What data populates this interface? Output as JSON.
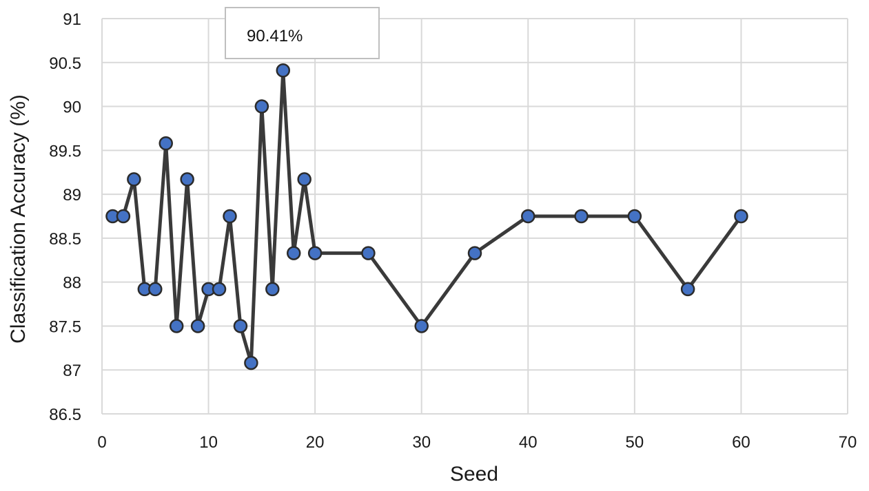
{
  "chart_data": {
    "type": "line",
    "title": "",
    "xlabel": "Seed",
    "ylabel": "Classification Accuracy (%)",
    "xlim": [
      0,
      70
    ],
    "ylim": [
      86.5,
      91
    ],
    "x_ticks": [
      "0",
      "10",
      "20",
      "30",
      "40",
      "50",
      "60",
      "70"
    ],
    "y_ticks": [
      "86.5",
      "87",
      "87.5",
      "88",
      "88.5",
      "89",
      "89.5",
      "90",
      "90.5",
      "91"
    ],
    "grid": true,
    "legend": "none",
    "series": [
      {
        "name": "Accuracy",
        "x": [
          1,
          2,
          3,
          4,
          5,
          6,
          7,
          8,
          9,
          10,
          11,
          12,
          13,
          14,
          15,
          16,
          17,
          18,
          19,
          20,
          25,
          30,
          35,
          40,
          45,
          50,
          55,
          60
        ],
        "values": [
          88.75,
          88.75,
          89.17,
          87.92,
          87.92,
          89.58,
          87.5,
          89.17,
          87.5,
          87.92,
          87.92,
          88.75,
          87.5,
          87.08,
          90.0,
          87.92,
          90.41,
          88.33,
          89.17,
          88.33,
          88.33,
          87.5,
          88.33,
          88.75,
          88.75,
          88.75,
          87.92,
          88.75
        ]
      }
    ],
    "annotation": {
      "text": "90.41%",
      "x": 17,
      "y": 90.41
    },
    "colors": {
      "line": "#3a3a3a",
      "marker_fill": "#4472c4",
      "marker_stroke": "#2b2b2b",
      "grid": "#d9d9d9"
    }
  }
}
